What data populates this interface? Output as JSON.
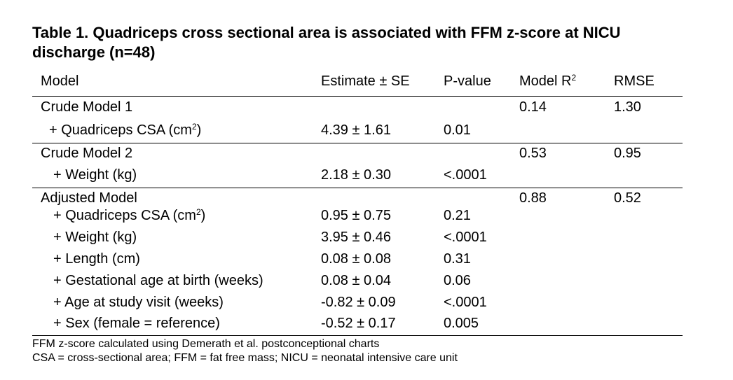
{
  "table": {
    "title_line1": "Table 1. Quadriceps cross sectional area is associated with FFM z-score at NICU",
    "title_line2": "discharge (n=48)",
    "headers": {
      "model": "Model",
      "estimate": "Estimate ± SE",
      "pvalue": "P-value",
      "r2": "Model R",
      "r2_sup": "2",
      "rmse": "RMSE"
    },
    "crude1": {
      "label": "Crude Model 1",
      "r2": "0.14",
      "rmse": "1.30",
      "rows": [
        {
          "label": "+ Quadriceps CSA (cm",
          "sup": "2",
          "close": ")",
          "estimate": "4.39 ± 1.61",
          "p": "0.01"
        }
      ]
    },
    "crude2": {
      "label": "Crude Model 2",
      "r2": "0.53",
      "rmse": "0.95",
      "rows": [
        {
          "label": "+ Weight (kg)",
          "estimate": "2.18 ± 0.30",
          "p": "<.0001"
        }
      ]
    },
    "adjusted": {
      "label": "Adjusted Model",
      "r2": "0.88",
      "rmse": "0.52",
      "rows": [
        {
          "label": "+ Quadriceps CSA (cm",
          "sup": "2",
          "close": ")",
          "estimate": "0.95 ± 0.75",
          "p": "0.21"
        },
        {
          "label": "+ Weight (kg)",
          "estimate": "3.95 ± 0.46",
          "p": "<.0001"
        },
        {
          "label": "+ Length (cm)",
          "estimate": "0.08 ± 0.08",
          "p": "0.31"
        },
        {
          "label": "+ Gestational age at birth (weeks)",
          "estimate": "0.08 ± 0.04",
          "p": "0.06"
        },
        {
          "label": "+ Age at study visit (weeks)",
          "estimate": "-0.82 ± 0.09",
          "p": "<.0001"
        },
        {
          "label": "+ Sex (female = reference)",
          "estimate": "-0.52 ± 0.17",
          "p": "0.005"
        }
      ]
    },
    "footnotes": [
      "FFM z-score calculated using Demerath et al. postconceptional charts",
      "CSA = cross-sectional area; FFM = fat free mass; NICU = neonatal intensive care unit"
    ]
  }
}
